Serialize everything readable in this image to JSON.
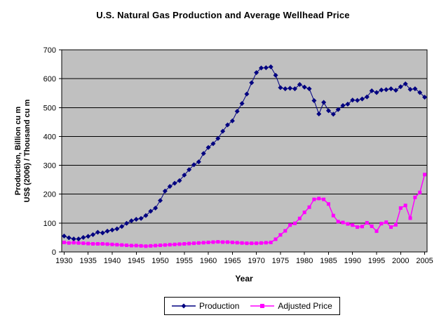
{
  "chart_data": {
    "type": "line",
    "title": "U.S. Natural Gas Production and Average Wellhead Price",
    "xlabel": "Year",
    "ylabel_line1": "Production, Billion cu m",
    "ylabel_line2": "US$ (2006) / Thousand cu m",
    "ylim": [
      0,
      700
    ],
    "y_ticks": [
      0,
      100,
      200,
      300,
      400,
      500,
      600,
      700
    ],
    "x_tick_labels": [
      "1930",
      "1935",
      "1940",
      "1945",
      "1950",
      "1955",
      "1960",
      "1965",
      "1970",
      "1975",
      "1980",
      "1985",
      "1990",
      "1995",
      "2000",
      "2005"
    ],
    "grid": true,
    "legend_position": "bottom",
    "plot_bg": "#c0c0c0",
    "grid_color": "#000000",
    "axis_color": "#000000",
    "x": [
      1930,
      1931,
      1932,
      1933,
      1934,
      1935,
      1936,
      1937,
      1938,
      1939,
      1940,
      1941,
      1942,
      1943,
      1944,
      1945,
      1946,
      1947,
      1948,
      1949,
      1950,
      1951,
      1952,
      1953,
      1954,
      1955,
      1956,
      1957,
      1958,
      1959,
      1960,
      1961,
      1962,
      1963,
      1964,
      1965,
      1966,
      1967,
      1968,
      1969,
      1970,
      1971,
      1972,
      1973,
      1974,
      1975,
      1976,
      1977,
      1978,
      1979,
      1980,
      1981,
      1982,
      1983,
      1984,
      1985,
      1986,
      1987,
      1988,
      1989,
      1990,
      1991,
      1992,
      1993,
      1994,
      1995,
      1996,
      1997,
      1998,
      1999,
      2000,
      2001,
      2002,
      2003,
      2004,
      2005
    ],
    "series": [
      {
        "name": "Production",
        "color": "#000080",
        "marker": "diamond",
        "values": [
          55,
          49,
          45,
          45,
          50,
          54,
          60,
          68,
          66,
          72,
          76,
          80,
          88,
          99,
          108,
          113,
          116,
          126,
          141,
          152,
          178,
          211,
          227,
          238,
          247,
          266,
          285,
          302,
          312,
          341,
          362,
          375,
          393,
          418,
          440,
          454,
          487,
          514,
          547,
          586,
          621,
          637,
          638,
          641,
          612,
          569,
          565,
          567,
          565,
          580,
          571,
          565,
          524,
          478,
          518,
          489,
          477,
          493,
          507,
          512,
          526,
          525,
          530,
          537,
          558,
          552,
          561,
          562,
          565,
          560,
          572,
          582,
          563,
          565,
          552,
          536
        ]
      },
      {
        "name": "Adjusted Price",
        "color": "#ff00ff",
        "marker": "square",
        "values": [
          33,
          31,
          32,
          31,
          30,
          29,
          28,
          28,
          28,
          27,
          26,
          25,
          24,
          23,
          22,
          22,
          21,
          20,
          21,
          22,
          23,
          24,
          25,
          26,
          27,
          28,
          29,
          30,
          31,
          32,
          33,
          34,
          35,
          34,
          34,
          33,
          32,
          31,
          30,
          30,
          30,
          31,
          32,
          33,
          44,
          59,
          73,
          93,
          99,
          116,
          137,
          155,
          182,
          185,
          182,
          166,
          126,
          105,
          102,
          97,
          93,
          86,
          88,
          101,
          89,
          72,
          98,
          103,
          86,
          94,
          152,
          161,
          117,
          189,
          206,
          268
        ]
      }
    ]
  }
}
